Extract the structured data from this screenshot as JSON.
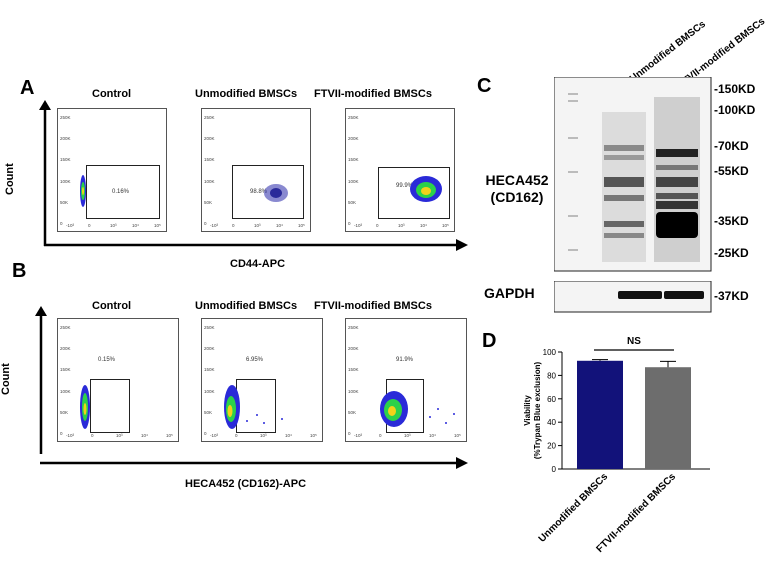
{
  "panels": {
    "A": {
      "letter": "A",
      "y_label": "Count",
      "x_label": "CD44-APC",
      "plots": [
        {
          "title": "Control",
          "gate_pct": "0.16%"
        },
        {
          "title": "Unmodified BMSCs",
          "gate_pct": "98.8%"
        },
        {
          "title": "FTVII-modified BMSCs",
          "gate_pct": "99.9%"
        }
      ]
    },
    "B": {
      "letter": "B",
      "y_label": "Count",
      "x_label": "HECA452 (CD162)-APC",
      "plots": [
        {
          "title": "Control",
          "gate_pct": "0.15%"
        },
        {
          "title": "Unmodified BMSCs",
          "gate_pct": "6.95%"
        },
        {
          "title": "FTVII-modified BMSCs",
          "gate_pct": "91.9%"
        }
      ]
    },
    "C": {
      "letter": "C",
      "lanes": [
        "Unmodified BMSCs",
        "FTVII-modified BMSCs"
      ],
      "blot_label_line1": "HECA452",
      "blot_label_line2": "(CD162)",
      "loading_label": "GAPDH",
      "markers": [
        "-150KD",
        "-100KD",
        "-70KD",
        "-55KD",
        "-35KD",
        "-25KD"
      ],
      "gapdh_marker": "-37KD"
    },
    "D": {
      "letter": "D",
      "significance": "NS"
    }
  },
  "flow_axes": {
    "y_ticks": [
      "250K",
      "200K",
      "150K",
      "100K",
      "50K",
      "0"
    ],
    "x_ticks_A": [
      "-10³",
      "0",
      "10³",
      "10⁴",
      "10⁵"
    ],
    "x_ticks_B": [
      "-10³",
      "0",
      "10³",
      "10⁴",
      "10⁵"
    ]
  },
  "colors": {
    "bar1": "#12127a",
    "bar2": "#6d6d6d",
    "dot_low": "#2a2ad8",
    "dot_mid": "#2bd14a",
    "dot_high": "#f2d21a"
  },
  "chart_data": {
    "type": "bar",
    "categories": [
      "Unmodified BMSCs",
      "FTVII-modified BMSCs"
    ],
    "values": [
      92.5,
      87
    ],
    "errors": [
      1,
      5
    ],
    "ylabel": "Viability\n(%Trypan Blue exclusion)",
    "ylim": [
      0,
      100
    ],
    "yticks": [
      0,
      20,
      40,
      60,
      80,
      100
    ]
  }
}
